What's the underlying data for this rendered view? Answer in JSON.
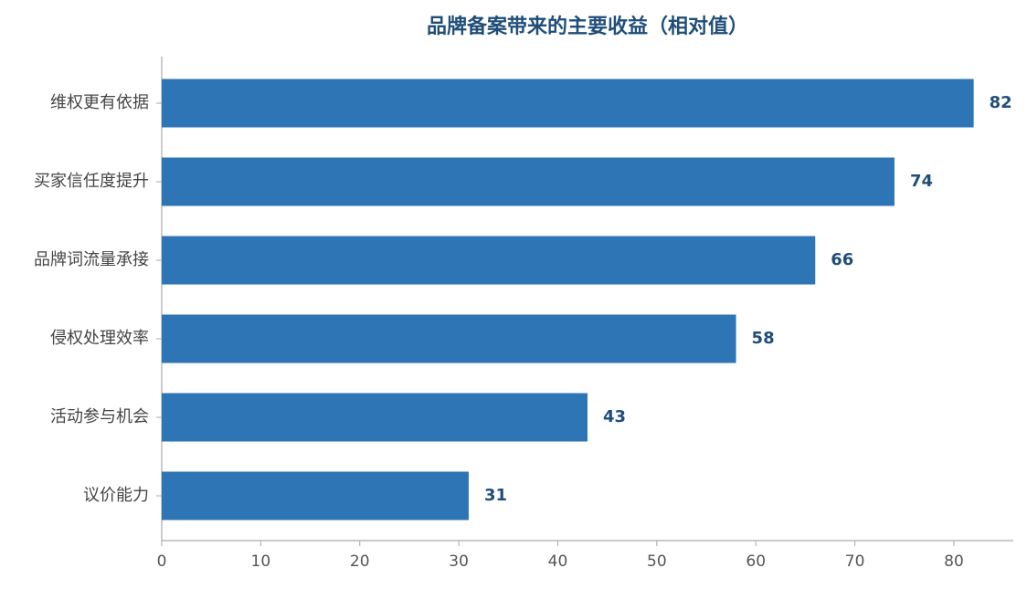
{
  "chart_data": {
    "type": "barh",
    "title": "品牌备案带来的主要收益（相对值）",
    "categories": [
      "维权更有依据",
      "买家信任度提升",
      "品牌词流量承接",
      "侵权处理效率",
      "活动参与机会",
      "议价能力"
    ],
    "values": [
      82,
      74,
      66,
      58,
      43,
      31
    ],
    "color": "#2e75b6",
    "xlim": [
      0,
      86
    ],
    "xticks": [
      0,
      10,
      20,
      30,
      40,
      50,
      60,
      70,
      80
    ],
    "grid": false
  }
}
